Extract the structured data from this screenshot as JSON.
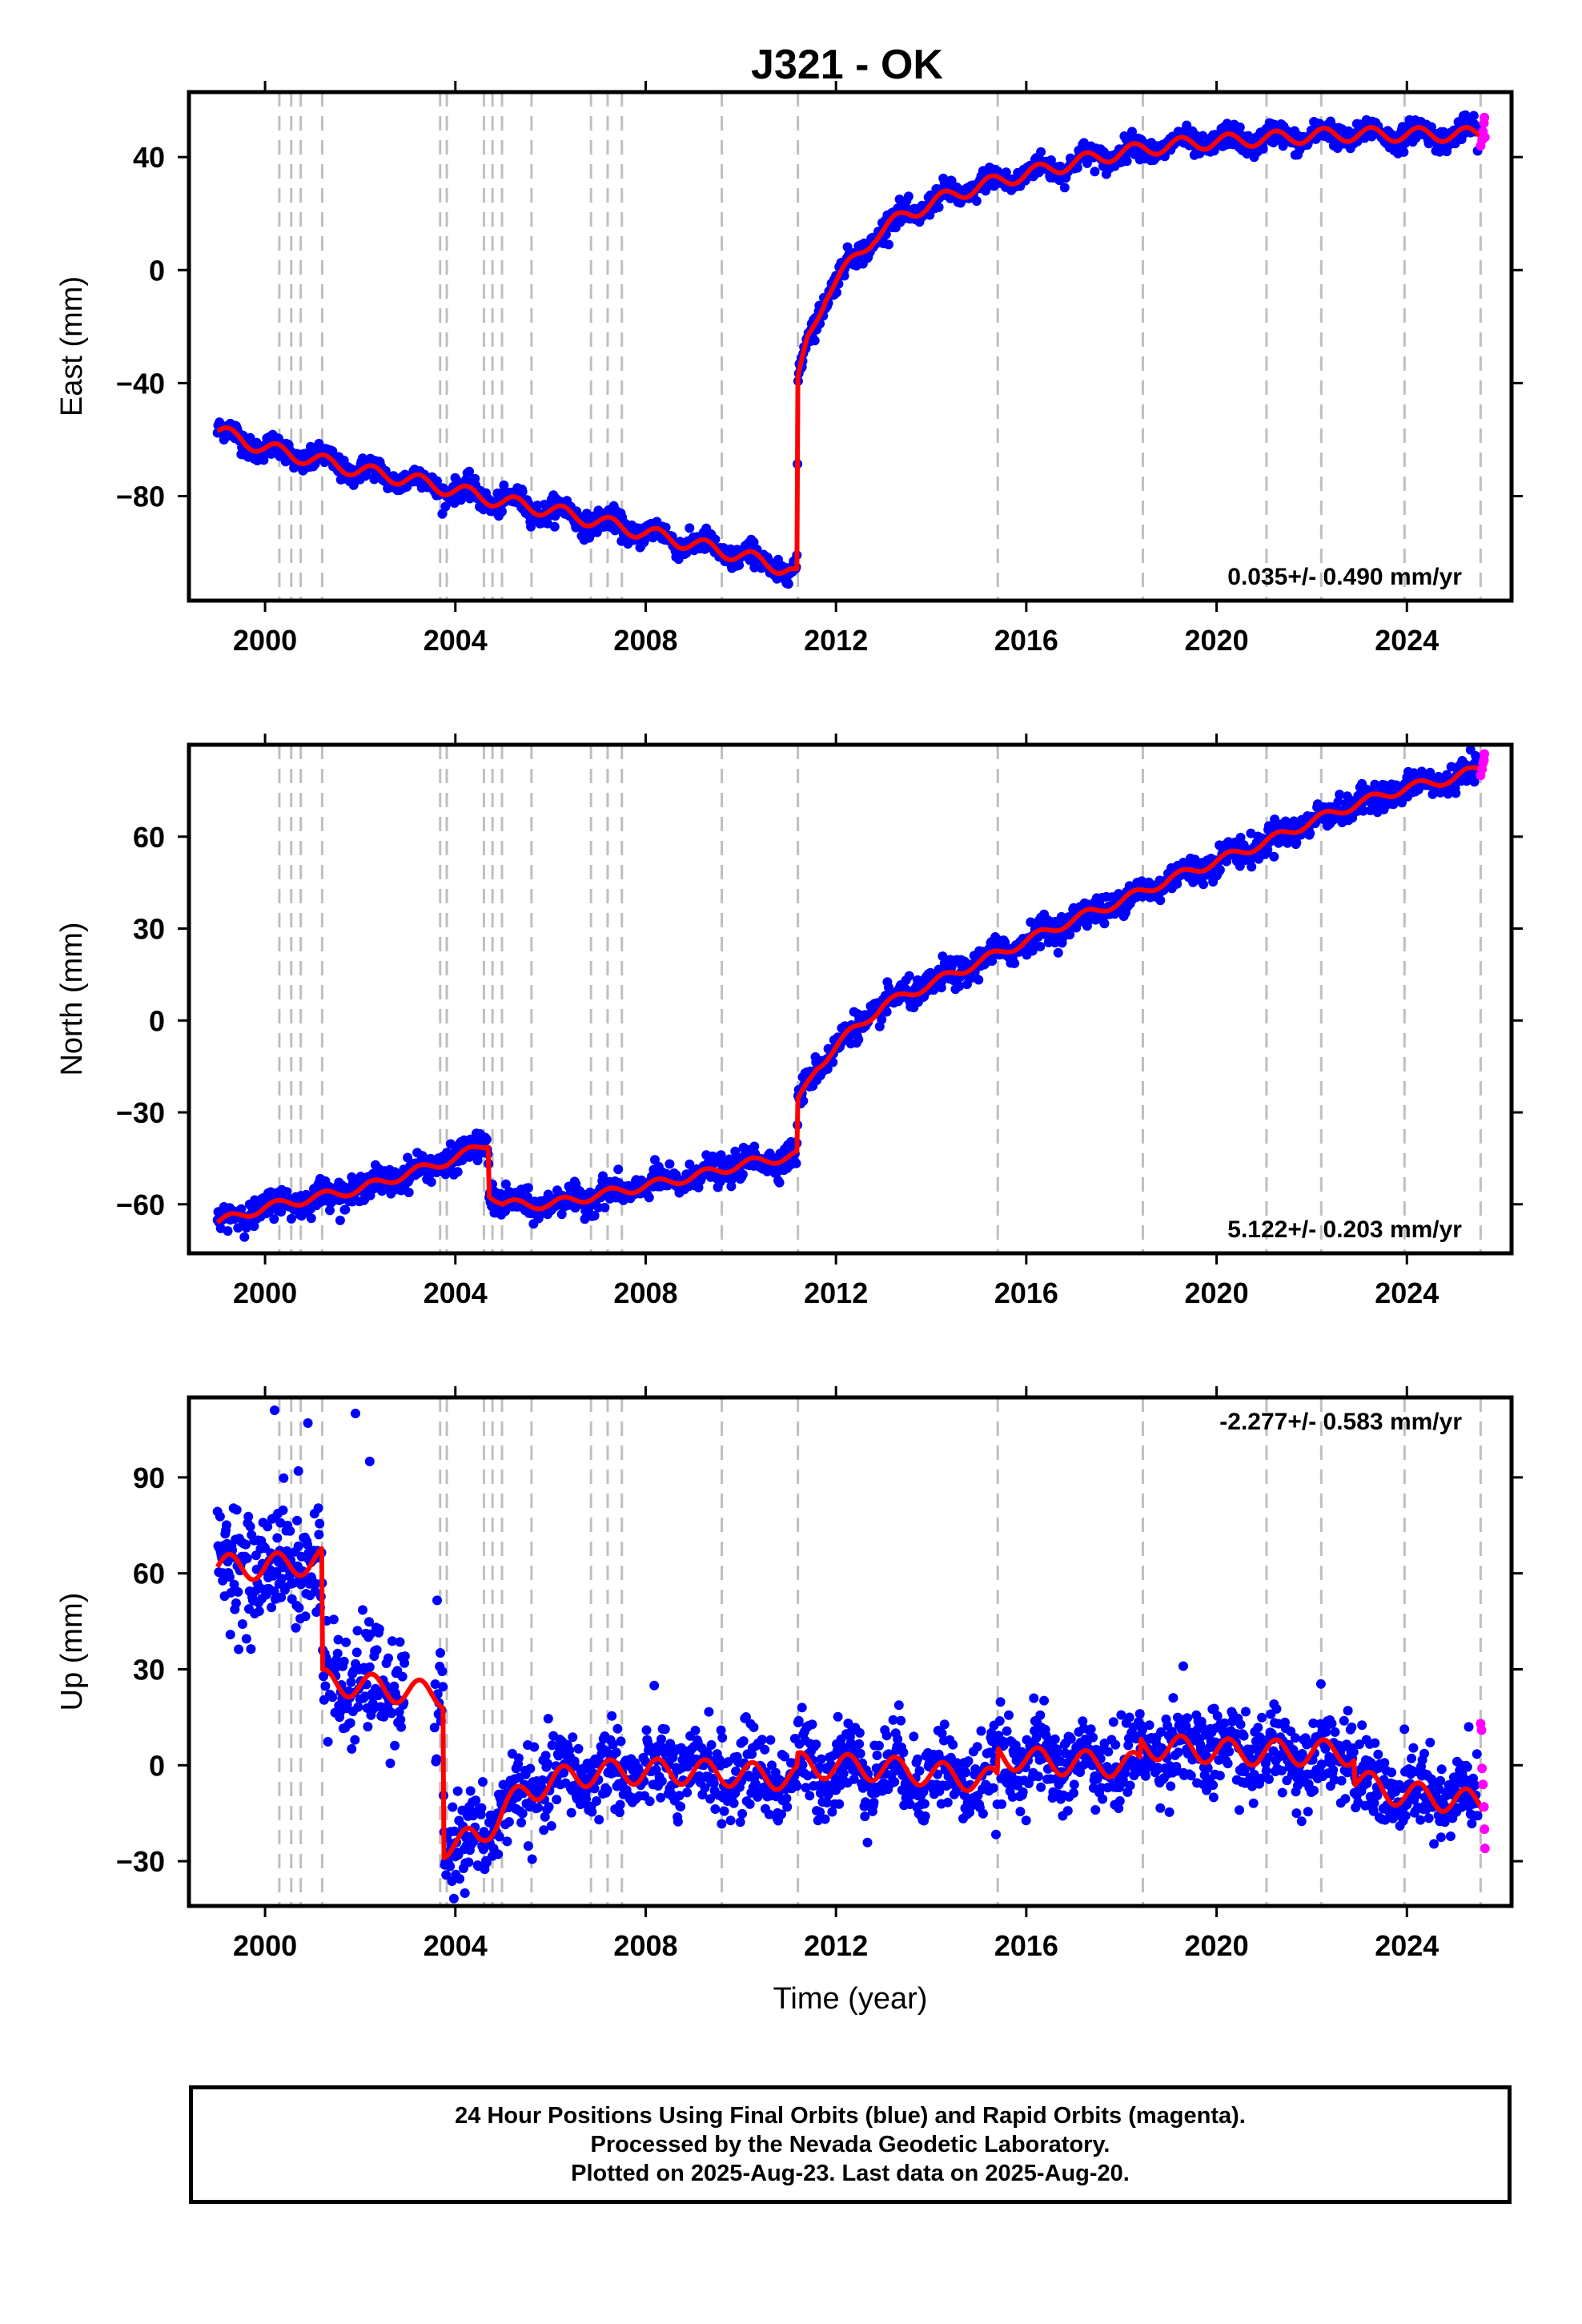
{
  "title": "J321 - OK",
  "footer": {
    "line1": "24 Hour Positions Using Final Orbits (blue) and Rapid Orbits (magenta).",
    "line2": "Processed by the Nevada Geodetic Laboratory.",
    "line3": "Plotted on 2025-Aug-23. Last data on 2025-Aug-20."
  },
  "colors": {
    "final_orbits": "#0000ff",
    "rapid_orbits": "#ff00ff",
    "model": "#ff0000",
    "event_lines": "#bfbfbf"
  },
  "chart_data": [
    {
      "type": "scatter",
      "component": "East",
      "ylabel": "East (mm)",
      "xlabel": "",
      "xlim": [
        1998.4,
        2026.2
      ],
      "ylim": [
        -117,
        63
      ],
      "xticks": [
        2000,
        2004,
        2008,
        2012,
        2016,
        2020,
        2024
      ],
      "yticks": [
        -80,
        -40,
        0,
        40
      ],
      "rate_text": "0.035+/- 0.490 mm/yr",
      "rate_position": "bottom-right",
      "steps": [
        {
          "x": 2011.19,
          "size": 62
        }
      ],
      "model": [
        [
          1999.0,
          -57
        ],
        [
          2000.0,
          -63
        ],
        [
          2001.0,
          -67
        ],
        [
          2002.0,
          -71
        ],
        [
          2003.0,
          -74
        ],
        [
          2004.0,
          -78
        ],
        [
          2005.0,
          -82
        ],
        [
          2006.0,
          -85
        ],
        [
          2007.0,
          -89
        ],
        [
          2008.0,
          -93
        ],
        [
          2009.0,
          -97
        ],
        [
          2010.0,
          -101
        ],
        [
          2011.0,
          -106
        ],
        [
          2011.18,
          -108
        ],
        [
          2011.2,
          -40
        ],
        [
          2011.4,
          -25
        ],
        [
          2011.8,
          -8
        ],
        [
          2012.3,
          2
        ],
        [
          2012.8,
          12
        ],
        [
          2013.5,
          20
        ],
        [
          2014.5,
          27
        ],
        [
          2015.5,
          32
        ],
        [
          2016.5,
          36
        ],
        [
          2017.5,
          40
        ],
        [
          2018.5,
          43
        ],
        [
          2019.5,
          45
        ],
        [
          2020.5,
          46
        ],
        [
          2021.5,
          47
        ],
        [
          2022.5,
          48
        ],
        [
          2023.5,
          48
        ],
        [
          2024.5,
          48
        ],
        [
          2025.6,
          48
        ]
      ],
      "seasonal_amplitude": 2.5,
      "scatter_sd": 2.0,
      "rapid_points": [
        [
          2025.55,
          44
        ],
        [
          2025.58,
          46
        ],
        [
          2025.6,
          49
        ],
        [
          2025.62,
          52
        ],
        [
          2025.63,
          54
        ],
        [
          2025.64,
          47
        ]
      ]
    },
    {
      "type": "scatter",
      "component": "North",
      "ylabel": "North (mm)",
      "xlabel": "",
      "xlim": [
        1998.4,
        2026.2
      ],
      "ylim": [
        -76,
        90
      ],
      "xticks": [
        2000,
        2004,
        2008,
        2012,
        2016,
        2020,
        2024
      ],
      "yticks": [
        -60,
        -30,
        0,
        30,
        60
      ],
      "rate_text": "5.122+/- 0.203 mm/yr",
      "rate_position": "bottom-right",
      "steps": [
        {
          "x": 2004.7,
          "size": -20
        },
        {
          "x": 2011.19,
          "size": 20
        }
      ],
      "model": [
        [
          1999.0,
          -66
        ],
        [
          2000.0,
          -61
        ],
        [
          2001.0,
          -58
        ],
        [
          2002.0,
          -55
        ],
        [
          2003.0,
          -50
        ],
        [
          2004.0,
          -45
        ],
        [
          2004.69,
          -40
        ],
        [
          2004.71,
          -56
        ],
        [
          2005.0,
          -60
        ],
        [
          2006.0,
          -60
        ],
        [
          2007.0,
          -57
        ],
        [
          2008.0,
          -54
        ],
        [
          2009.0,
          -51
        ],
        [
          2010.0,
          -47
        ],
        [
          2011.18,
          -44
        ],
        [
          2011.2,
          -27
        ],
        [
          2011.6,
          -15
        ],
        [
          2012.3,
          -4
        ],
        [
          2013.0,
          5
        ],
        [
          2014.0,
          12
        ],
        [
          2015.0,
          19
        ],
        [
          2016.0,
          26
        ],
        [
          2017.0,
          33
        ],
        [
          2018.0,
          39
        ],
        [
          2019.0,
          46
        ],
        [
          2020.0,
          52
        ],
        [
          2021.0,
          58
        ],
        [
          2022.0,
          65
        ],
        [
          2023.0,
          71
        ],
        [
          2024.0,
          76
        ],
        [
          2025.0,
          79
        ],
        [
          2025.6,
          83
        ]
      ],
      "seasonal_amplitude": 1.5,
      "scatter_sd": 2.2,
      "rapid_points": [
        [
          2025.55,
          80
        ],
        [
          2025.58,
          82
        ],
        [
          2025.6,
          84
        ],
        [
          2025.62,
          85
        ],
        [
          2025.63,
          87
        ]
      ]
    },
    {
      "type": "scatter",
      "component": "Up",
      "ylabel": "Up (mm)",
      "xlabel": "Time (year)",
      "xlim": [
        1998.4,
        2026.2
      ],
      "ylim": [
        -44,
        115
      ],
      "xticks": [
        2000,
        2004,
        2008,
        2012,
        2016,
        2020,
        2024
      ],
      "yticks": [
        -30,
        0,
        30,
        60,
        90
      ],
      "rate_text": "-2.277+/- 0.583 mm/yr",
      "rate_position": "top-right",
      "steps": [
        {
          "x": 2001.2,
          "size": -40
        },
        {
          "x": 2003.75,
          "size": -50
        },
        {
          "x": 2011.19,
          "size": 4
        },
        {
          "x": 2015.4,
          "size": 6
        },
        {
          "x": 2018.4,
          "size": 4
        },
        {
          "x": 2022.9,
          "size": -8
        }
      ],
      "model": [
        [
          1999.0,
          62
        ],
        [
          2000.0,
          62
        ],
        [
          2001.19,
          64
        ],
        [
          2001.21,
          26
        ],
        [
          2002.0,
          25
        ],
        [
          2003.0,
          23
        ],
        [
          2003.74,
          22
        ],
        [
          2003.76,
          -25
        ],
        [
          2004.5,
          -23
        ],
        [
          2005.0,
          -14
        ],
        [
          2005.5,
          -8
        ],
        [
          2006.5,
          -3
        ],
        [
          2007.5,
          -2
        ],
        [
          2009.0,
          -2
        ],
        [
          2011.18,
          -4
        ],
        [
          2011.2,
          0
        ],
        [
          2013.0,
          -1
        ],
        [
          2015.39,
          -5
        ],
        [
          2015.41,
          3
        ],
        [
          2016.5,
          1
        ],
        [
          2018.39,
          0
        ],
        [
          2018.41,
          6
        ],
        [
          2019.5,
          5
        ],
        [
          2020.5,
          4
        ],
        [
          2021.5,
          4
        ],
        [
          2022.89,
          4
        ],
        [
          2022.91,
          -4
        ],
        [
          2023.5,
          -8
        ],
        [
          2024.5,
          -10
        ],
        [
          2025.6,
          -12
        ]
      ],
      "seasonal_amplitude": 4,
      "scatter_sd": 6.5,
      "outliers": [
        [
          2000.2,
          111
        ],
        [
          2000.9,
          107
        ],
        [
          2001.9,
          110
        ],
        [
          2000.7,
          92
        ],
        [
          2002.2,
          95
        ],
        [
          2019.3,
          31
        ],
        [
          2025.3,
          12
        ],
        [
          2004.2,
          -40
        ]
      ],
      "rapid_points": [
        [
          2025.55,
          13
        ],
        [
          2025.57,
          11
        ],
        [
          2025.58,
          -1
        ],
        [
          2025.6,
          -6
        ],
        [
          2025.62,
          -13
        ],
        [
          2025.63,
          -20
        ],
        [
          2025.64,
          -26
        ]
      ]
    }
  ],
  "event_lines_x": [
    2000.3,
    2000.55,
    2000.75,
    2001.2,
    2003.68,
    2003.82,
    2004.6,
    2004.78,
    2004.98,
    2005.6,
    2006.85,
    2007.2,
    2007.5,
    2009.6,
    2011.2,
    2015.4,
    2018.45,
    2021.05,
    2022.2,
    2023.95,
    2025.55
  ]
}
